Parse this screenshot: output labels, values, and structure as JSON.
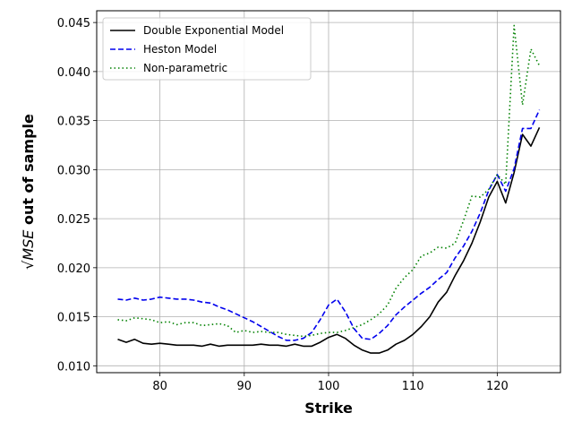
{
  "chart_data": {
    "type": "line",
    "xlabel": "Strike",
    "ylabel_math": "√MSE",
    "ylabel_rest": " out of sample",
    "xlim": [
      72.5,
      127.5
    ],
    "ylim": [
      0.0093,
      0.0462
    ],
    "xticks": [
      80,
      90,
      100,
      110,
      120
    ],
    "yticks": [
      0.01,
      0.015,
      0.02,
      0.025,
      0.03,
      0.035,
      0.04,
      0.045
    ],
    "ytick_labels": [
      "0.010",
      "0.015",
      "0.020",
      "0.025",
      "0.030",
      "0.035",
      "0.040",
      "0.045"
    ],
    "grid": true,
    "legend_position": "top-left",
    "x": [
      75,
      76,
      77,
      78,
      79,
      80,
      81,
      82,
      83,
      84,
      85,
      86,
      87,
      88,
      89,
      90,
      91,
      92,
      93,
      94,
      95,
      96,
      97,
      98,
      99,
      100,
      101,
      102,
      103,
      104,
      105,
      106,
      107,
      108,
      109,
      110,
      111,
      112,
      113,
      114,
      115,
      116,
      117,
      118,
      119,
      120,
      121,
      122,
      123,
      124,
      125
    ],
    "series": [
      {
        "name": "Double Exponential Model",
        "color": "#000000",
        "dash": "solid",
        "values": [
          0.0127,
          0.0124,
          0.0127,
          0.0123,
          0.0122,
          0.0123,
          0.0122,
          0.0121,
          0.0121,
          0.0121,
          0.012,
          0.0122,
          0.012,
          0.0121,
          0.0121,
          0.0121,
          0.0121,
          0.0122,
          0.0121,
          0.0121,
          0.012,
          0.0122,
          0.012,
          0.012,
          0.0124,
          0.0129,
          0.0132,
          0.0128,
          0.0121,
          0.0116,
          0.0113,
          0.0113,
          0.0116,
          0.0122,
          0.0126,
          0.0132,
          0.014,
          0.015,
          0.0165,
          0.0175,
          0.0192,
          0.0207,
          0.0225,
          0.0247,
          0.0272,
          0.0288,
          0.0266,
          0.0297,
          0.0336,
          0.0324,
          0.0343
        ]
      },
      {
        "name": "Heston Model",
        "color": "#0000ee",
        "dash": "dashed",
        "values": [
          0.0168,
          0.0167,
          0.0169,
          0.0167,
          0.0168,
          0.017,
          0.0169,
          0.0168,
          0.0168,
          0.0167,
          0.0165,
          0.0164,
          0.016,
          0.0157,
          0.0153,
          0.0149,
          0.0145,
          0.014,
          0.0135,
          0.013,
          0.0126,
          0.0126,
          0.0128,
          0.0134,
          0.0147,
          0.0162,
          0.0168,
          0.0155,
          0.0138,
          0.0128,
          0.0127,
          0.0133,
          0.0141,
          0.0152,
          0.016,
          0.0167,
          0.0174,
          0.018,
          0.0188,
          0.0195,
          0.021,
          0.0222,
          0.0237,
          0.0256,
          0.0279,
          0.0295,
          0.0278,
          0.0301,
          0.0342,
          0.0342,
          0.0361
        ]
      },
      {
        "name": "Non-parametric",
        "color": "#008000",
        "dash": "dotted",
        "values": [
          0.0147,
          0.0146,
          0.0149,
          0.0148,
          0.0147,
          0.0144,
          0.0145,
          0.0142,
          0.0144,
          0.0144,
          0.0141,
          0.0142,
          0.0143,
          0.0141,
          0.0134,
          0.0136,
          0.0134,
          0.0135,
          0.0134,
          0.0134,
          0.0132,
          0.0131,
          0.013,
          0.0131,
          0.0133,
          0.0134,
          0.0134,
          0.0136,
          0.0139,
          0.0142,
          0.0147,
          0.0153,
          0.0162,
          0.0179,
          0.019,
          0.0198,
          0.0212,
          0.0215,
          0.0221,
          0.022,
          0.0225,
          0.0248,
          0.0273,
          0.0272,
          0.028,
          0.0295,
          0.0285,
          0.0447,
          0.0366,
          0.0423,
          0.0406
        ]
      }
    ]
  }
}
